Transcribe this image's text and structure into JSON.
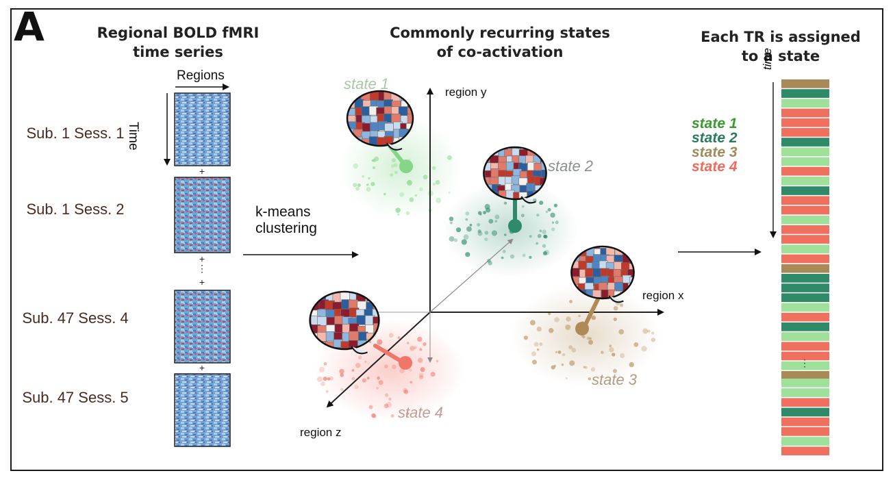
{
  "panel_label": "A",
  "titles": {
    "left": [
      "Regional BOLD fMRI",
      "time series"
    ],
    "middle": [
      "Commonly recurring states",
      "of co-activation"
    ],
    "right": [
      "Each TR is assigned",
      "to a state"
    ]
  },
  "matrix_axes": {
    "x": "Regions",
    "y": "Time"
  },
  "sessions": [
    {
      "label": "Sub. 1 Sess. 1"
    },
    {
      "label": "Sub. 1 Sess. 2"
    },
    {
      "label": "Sub. 47 Sess. 4"
    },
    {
      "label": "Sub. 47 Sess. 5"
    }
  ],
  "plus_sign": "+",
  "vertical_ellipsis": "⋮",
  "method": [
    "k-means",
    "clustering"
  ],
  "state_space_axes": {
    "x": "region x",
    "y": "region y",
    "z": "region z"
  },
  "states": [
    {
      "label": "state 1",
      "color": "#86d68a",
      "label_color": "#a9c7a4"
    },
    {
      "label": "state 2",
      "color": "#2e8a6a",
      "label_color": "#8a8f8c"
    },
    {
      "label": "state 3",
      "color": "#b08a55",
      "label_color": "#b19a80"
    },
    {
      "label": "state 4",
      "color": "#f0766a",
      "label_color": "#c59a96"
    }
  ],
  "legend": [
    {
      "label": "state 1",
      "color": "#3a9a2e"
    },
    {
      "label": "state 2",
      "color": "#2a7a5e"
    },
    {
      "label": "state 3",
      "color": "#a08a5a"
    },
    {
      "label": "state 4",
      "color": "#ee6a5a"
    }
  ],
  "timeline_axis": "time",
  "timeline_top": [
    3,
    2,
    1,
    4,
    4,
    4,
    2,
    1,
    1,
    4,
    1,
    2,
    4,
    4,
    1,
    4,
    4,
    1,
    4,
    3,
    2,
    2,
    2,
    1,
    4,
    2,
    1,
    4,
    4,
    1,
    3
  ],
  "timeline_bottom": [
    1,
    1,
    4,
    2,
    4,
    4,
    1,
    4
  ]
}
